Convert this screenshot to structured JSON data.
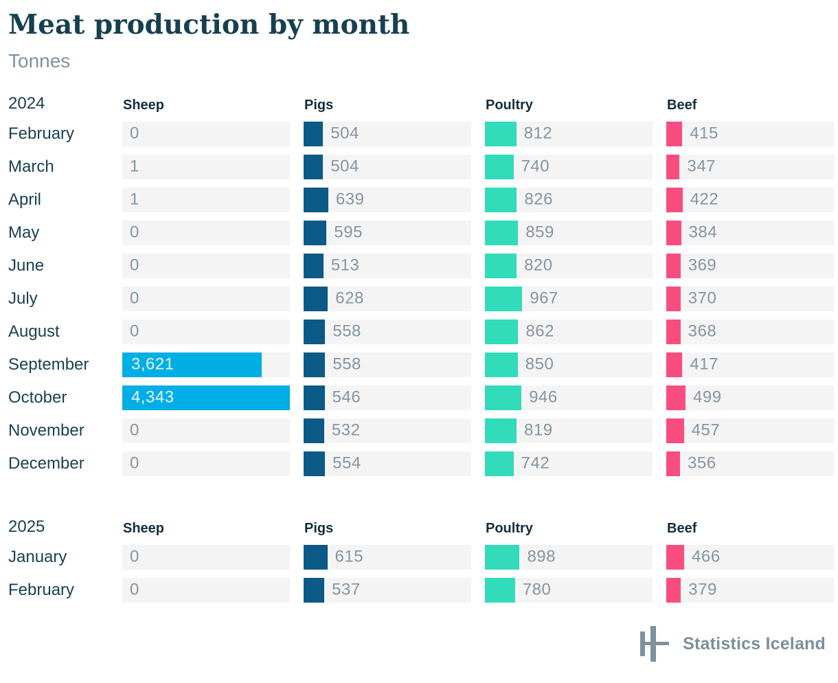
{
  "chart_data": {
    "type": "bar",
    "orientation": "horizontal",
    "title": "Meat production by month",
    "subtitle": "Tonnes",
    "unit": "Tonnes",
    "max_scale": 4343,
    "grid": false,
    "row_background": "#f4f4f4",
    "columns": [
      "Sheep",
      "Pigs",
      "Poultry",
      "Beef"
    ],
    "colors": [
      "#00aee6",
      "#0b5a87",
      "#32dbba",
      "#f94d7f"
    ],
    "value_label_color": "#8495a1",
    "value_label_inside_color": "#e8f5fb",
    "sections": [
      {
        "year": "2024",
        "rows": [
          {
            "month": "February",
            "values": [
              0,
              504,
              812,
              415
            ]
          },
          {
            "month": "March",
            "values": [
              1,
              504,
              740,
              347
            ]
          },
          {
            "month": "April",
            "values": [
              1,
              639,
              826,
              422
            ]
          },
          {
            "month": "May",
            "values": [
              0,
              595,
              859,
              384
            ]
          },
          {
            "month": "June",
            "values": [
              0,
              513,
              820,
              369
            ]
          },
          {
            "month": "July",
            "values": [
              0,
              628,
              967,
              370
            ]
          },
          {
            "month": "August",
            "values": [
              0,
              558,
              862,
              368
            ]
          },
          {
            "month": "September",
            "values": [
              3621,
              558,
              850,
              417
            ]
          },
          {
            "month": "October",
            "values": [
              4343,
              546,
              946,
              499
            ]
          },
          {
            "month": "November",
            "values": [
              0,
              532,
              819,
              457
            ]
          },
          {
            "month": "December",
            "values": [
              0,
              554,
              742,
              356
            ]
          }
        ]
      },
      {
        "year": "2025",
        "rows": [
          {
            "month": "January",
            "values": [
              0,
              615,
              898,
              466
            ]
          },
          {
            "month": "February",
            "values": [
              0,
              537,
              780,
              379
            ]
          }
        ]
      }
    ]
  },
  "footer": {
    "brand": "Statistics Iceland",
    "logo_color": "#7d929b"
  }
}
